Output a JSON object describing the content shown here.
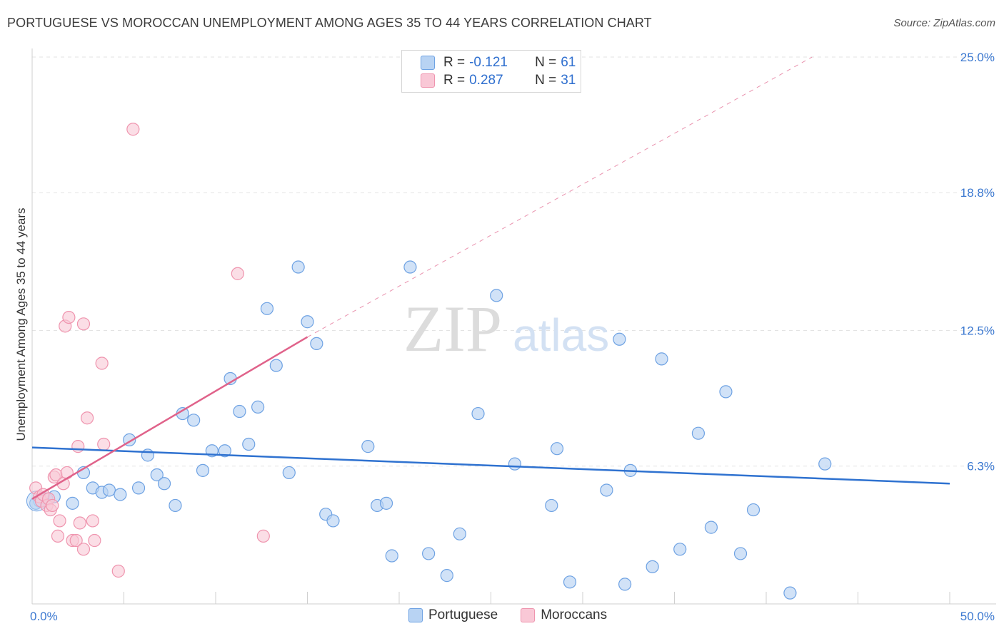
{
  "header": {
    "title": "PORTUGUESE VS MOROCCAN UNEMPLOYMENT AMONG AGES 35 TO 44 YEARS CORRELATION CHART",
    "source": "Source: ZipAtlas.com"
  },
  "watermark": {
    "zip": "ZIP",
    "atlas": "atlas"
  },
  "colors": {
    "portuguese_fill": "#b8d3f3",
    "portuguese_stroke": "#6ea2e3",
    "portuguese_line": "#2f72d0",
    "moroccan_fill": "#f9c8d6",
    "moroccan_stroke": "#ef94ae",
    "moroccan_line": "#e0628a",
    "tick_label": "#3b78d0",
    "grid": "#e3e3e3"
  },
  "stats_legend": {
    "rows": [
      {
        "series": "Portuguese",
        "r_label": "R =",
        "r_value": "-0.121",
        "n_label": "N =",
        "n_value": "61"
      },
      {
        "series": "Moroccans",
        "r_label": "R =",
        "r_value": "0.287",
        "n_label": "N =",
        "n_value": "31"
      }
    ]
  },
  "bottom_legend": {
    "items": [
      "Portuguese",
      "Moroccans"
    ]
  },
  "chart_data": {
    "type": "scatter",
    "title": "PORTUGUESE VS MOROCCAN UNEMPLOYMENT AMONG AGES 35 TO 44 YEARS CORRELATION CHART",
    "xlabel": "",
    "ylabel": "Unemployment Among Ages 35 to 44 years",
    "xlim": [
      0,
      50
    ],
    "ylim": [
      0,
      25
    ],
    "x_tick_labels": [
      {
        "value": 0,
        "label": "0.0%"
      },
      {
        "value": 50,
        "label": "50.0%"
      }
    ],
    "y_ticks": [
      {
        "value": 6.3,
        "label": "6.3%"
      },
      {
        "value": 12.5,
        "label": "12.5%"
      },
      {
        "value": 18.8,
        "label": "18.8%"
      },
      {
        "value": 25.0,
        "label": "25.0%"
      }
    ],
    "legend_position": "top-center",
    "series": [
      {
        "name": "Portuguese",
        "r": -0.121,
        "n": 61,
        "trend": {
          "x": [
            0,
            50
          ],
          "y": [
            7.15,
            5.5
          ],
          "style": "solid"
        },
        "points": [
          [
            0.4,
            4.7
          ],
          [
            0.8,
            4.8
          ],
          [
            1.2,
            4.9
          ],
          [
            2.2,
            4.6
          ],
          [
            2.8,
            6.0
          ],
          [
            3.3,
            5.3
          ],
          [
            3.8,
            5.1
          ],
          [
            4.2,
            5.2
          ],
          [
            4.8,
            5.0
          ],
          [
            5.3,
            7.5
          ],
          [
            5.8,
            5.3
          ],
          [
            6.3,
            6.8
          ],
          [
            6.8,
            5.9
          ],
          [
            7.2,
            5.5
          ],
          [
            7.8,
            4.5
          ],
          [
            8.2,
            8.7
          ],
          [
            8.8,
            8.4
          ],
          [
            9.3,
            6.1
          ],
          [
            9.8,
            7.0
          ],
          [
            10.5,
            7.0
          ],
          [
            10.8,
            10.3
          ],
          [
            11.3,
            8.8
          ],
          [
            11.8,
            7.3
          ],
          [
            12.3,
            9.0
          ],
          [
            12.8,
            13.5
          ],
          [
            13.3,
            10.9
          ],
          [
            14.0,
            6.0
          ],
          [
            14.5,
            15.4
          ],
          [
            15.0,
            12.9
          ],
          [
            15.5,
            11.9
          ],
          [
            16.0,
            4.1
          ],
          [
            16.4,
            3.8
          ],
          [
            18.3,
            7.2
          ],
          [
            18.8,
            4.5
          ],
          [
            19.3,
            4.6
          ],
          [
            19.6,
            2.2
          ],
          [
            20.6,
            15.4
          ],
          [
            21.6,
            2.3
          ],
          [
            22.6,
            1.3
          ],
          [
            23.3,
            3.2
          ],
          [
            24.3,
            8.7
          ],
          [
            25.3,
            14.1
          ],
          [
            26.3,
            6.4
          ],
          [
            28.3,
            4.5
          ],
          [
            28.6,
            7.1
          ],
          [
            29.3,
            1.0
          ],
          [
            31.3,
            5.2
          ],
          [
            32.0,
            12.1
          ],
          [
            32.3,
            0.9
          ],
          [
            32.6,
            6.1
          ],
          [
            33.8,
            1.7
          ],
          [
            34.3,
            11.2
          ],
          [
            35.3,
            2.5
          ],
          [
            36.3,
            7.8
          ],
          [
            37.0,
            3.5
          ],
          [
            37.8,
            9.7
          ],
          [
            38.6,
            2.3
          ],
          [
            39.3,
            4.3
          ],
          [
            41.3,
            0.5
          ],
          [
            43.2,
            6.4
          ],
          [
            0.2,
            4.6
          ]
        ]
      },
      {
        "name": "Moroccans",
        "r": 0.287,
        "n": 31,
        "trend": {
          "x": [
            0,
            15
          ],
          "y": [
            4.8,
            12.2
          ],
          "style": "solid",
          "extended": {
            "x": [
              15,
              42.5
            ],
            "y": [
              12.2,
              25.0
            ],
            "style": "dashed"
          }
        },
        "points": [
          [
            0.2,
            5.3
          ],
          [
            0.4,
            4.9
          ],
          [
            0.5,
            4.7
          ],
          [
            0.6,
            5.0
          ],
          [
            0.8,
            4.5
          ],
          [
            0.9,
            4.8
          ],
          [
            1.0,
            4.3
          ],
          [
            1.1,
            4.5
          ],
          [
            1.2,
            5.8
          ],
          [
            1.3,
            5.9
          ],
          [
            1.4,
            3.1
          ],
          [
            1.5,
            3.8
          ],
          [
            1.7,
            5.5
          ],
          [
            1.8,
            12.7
          ],
          [
            1.9,
            6.0
          ],
          [
            2.0,
            13.1
          ],
          [
            2.2,
            2.9
          ],
          [
            2.4,
            2.9
          ],
          [
            2.5,
            7.2
          ],
          [
            2.6,
            3.7
          ],
          [
            2.8,
            12.8
          ],
          [
            2.8,
            2.5
          ],
          [
            3.0,
            8.5
          ],
          [
            3.3,
            3.8
          ],
          [
            3.4,
            2.9
          ],
          [
            3.8,
            11.0
          ],
          [
            3.9,
            7.3
          ],
          [
            4.7,
            1.5
          ],
          [
            5.5,
            21.7
          ],
          [
            11.2,
            15.1
          ],
          [
            12.6,
            3.1
          ]
        ]
      }
    ]
  }
}
